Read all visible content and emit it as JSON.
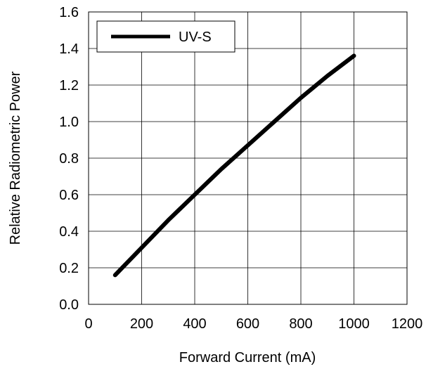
{
  "chart_data": {
    "type": "line",
    "title": "",
    "xlabel": "Forward Current (mA)",
    "ylabel": "Relative Radiometric Power",
    "xlim": [
      0,
      1200
    ],
    "ylim": [
      0.0,
      1.6
    ],
    "x_ticks": [
      "0",
      "200",
      "400",
      "600",
      "800",
      "1000",
      "1200"
    ],
    "y_ticks": [
      "0.0",
      "0.2",
      "0.4",
      "0.6",
      "0.8",
      "1.0",
      "1.2",
      "1.4",
      "1.6"
    ],
    "grid": true,
    "legend_position": "top-left",
    "series": [
      {
        "name": "UV-S",
        "color": "#000000",
        "x": [
          100,
          200,
          300,
          400,
          500,
          600,
          700,
          800,
          900,
          1000
        ],
        "y": [
          0.16,
          0.31,
          0.46,
          0.6,
          0.74,
          0.87,
          1.0,
          1.13,
          1.25,
          1.36
        ]
      }
    ]
  }
}
